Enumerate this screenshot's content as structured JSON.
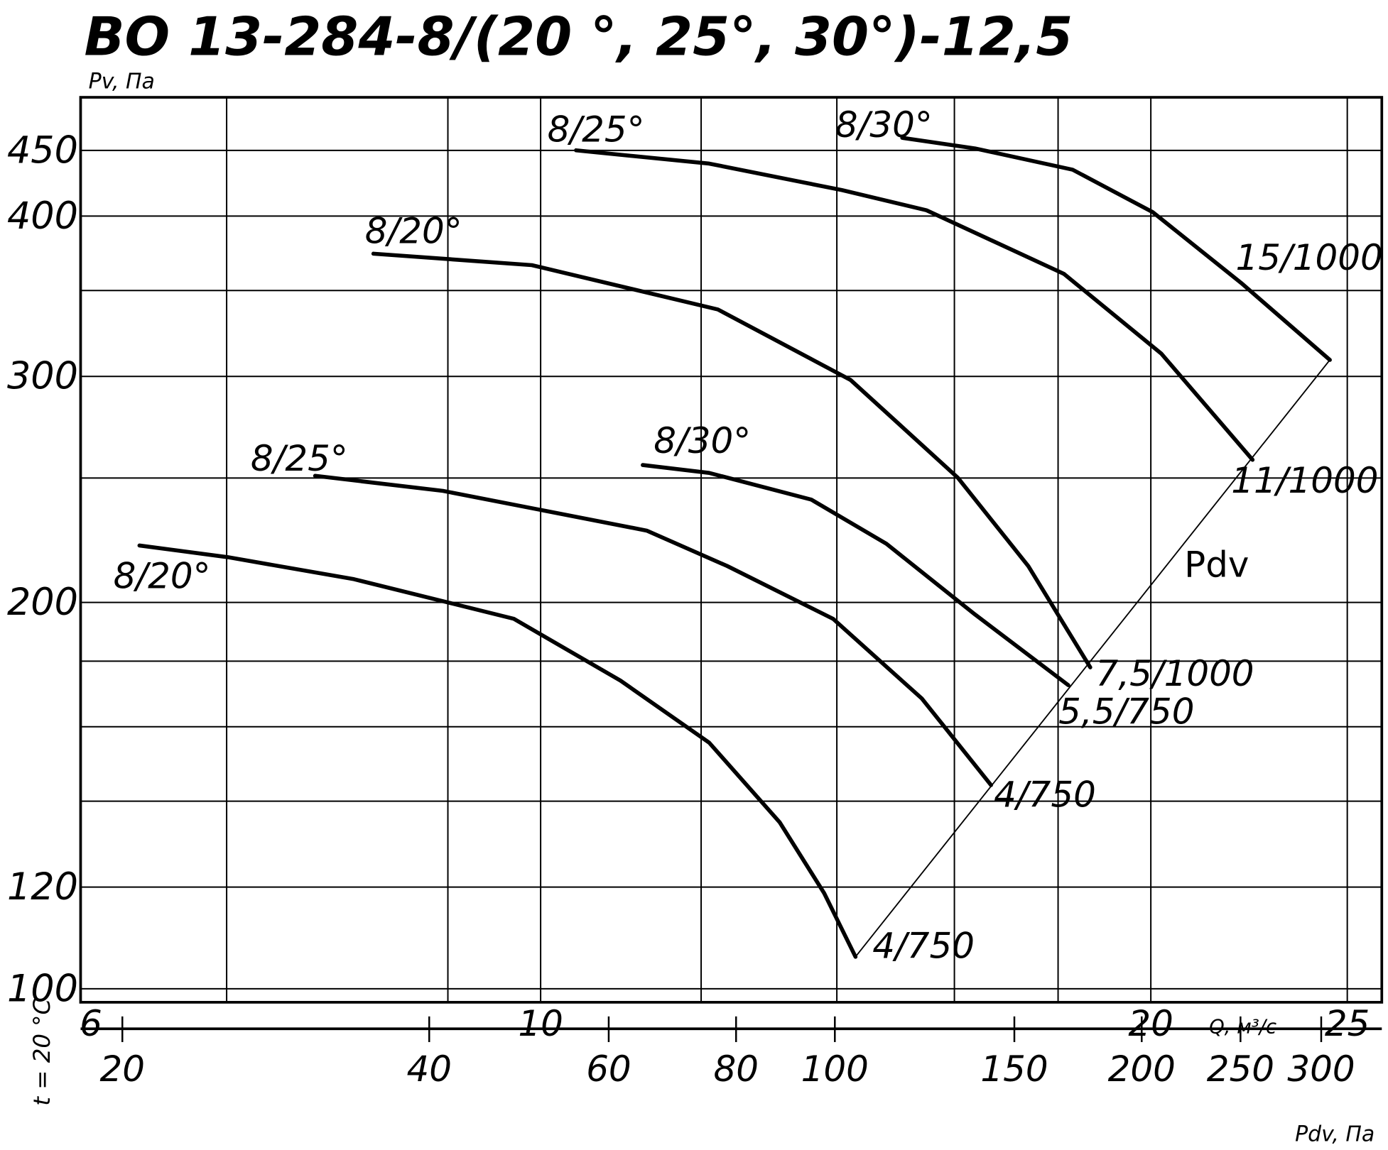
{
  "chart_data": {
    "type": "line",
    "title": "ВО 13-284-8/(20 °, 25°, 30°)-12,5",
    "y_label": "Pv, Па",
    "x_label": "Q, м³/с",
    "x2_label": "Pdv, Па",
    "condition": "t = 20 °C",
    "log_x": true,
    "log_y": true,
    "grid": true,
    "color": "#000000",
    "xlim": [
      5.93,
      26.0
    ],
    "xticks": [
      6,
      10,
      20,
      25
    ],
    "xgrid": [
      7,
      9,
      10,
      12,
      14,
      16,
      18,
      20,
      25
    ],
    "ylim": [
      97.6,
      495
    ],
    "yticks": [
      100,
      120,
      200,
      300,
      400,
      450
    ],
    "ygrid": [
      140,
      160,
      180,
      250,
      350
    ],
    "x2lim": [
      18.2,
      344
    ],
    "x2ticks": [
      20,
      40,
      60,
      80,
      100,
      150,
      200,
      250,
      300
    ],
    "series": [
      {
        "start_label": "8/20°",
        "end_label": "4/750",
        "x": [
          6.34,
          7.01,
          8.09,
          9.7,
          10.95,
          12.11,
          13.12,
          13.8,
          14.3
        ],
        "values": [
          221.5,
          216.9,
          208.5,
          194.2,
          173.8,
          155.5,
          134.8,
          118.7,
          105.9
        ]
      },
      {
        "start_label": "8/25°",
        "end_label": "4/750",
        "x": [
          7.74,
          8.95,
          11.28,
          12.36,
          13.94,
          15.42,
          16.68
        ],
        "values": [
          251.0,
          244.3,
          227.5,
          213.5,
          194.2,
          168.3,
          144.1
        ]
      },
      {
        "start_label": "8/30°",
        "end_label": "5,5/750",
        "x": [
          11.23,
          12.11,
          13.6,
          14.81,
          16.38,
          18.21
        ],
        "values": [
          255.9,
          252.3,
          240.5,
          222.2,
          195.7,
          172.4
        ]
      },
      {
        "start_label": "8/20°",
        "end_label": "7,5/1000",
        "x": [
          8.27,
          9.9,
          12.23,
          14.22,
          16.06,
          17.4,
          18.67
        ],
        "values": [
          373.9,
          366.3,
          338.3,
          298.1,
          250.2,
          213.5,
          178.0
        ]
      },
      {
        "start_label": "8/25°",
        "end_label": "11/1000",
        "x": [
          10.41,
          12.11,
          14.08,
          15.5,
          18.12,
          20.24,
          22.45
        ],
        "values": [
          450.1,
          439.5,
          419.1,
          404.2,
          360.6,
          312.5,
          258.3
        ]
      },
      {
        "start_label": "8/30°",
        "end_label": "15/1000",
        "x": [
          15.08,
          16.38,
          18.3,
          20.04,
          22.16,
          24.51
        ],
        "values": [
          460.3,
          451.6,
          434.7,
          402.9,
          354.8,
          309.0
        ]
      }
    ],
    "pdv_line": {
      "name": "Pdv",
      "x": [
        14.3,
        24.51
      ],
      "values": [
        105.9,
        309.0
      ]
    }
  }
}
